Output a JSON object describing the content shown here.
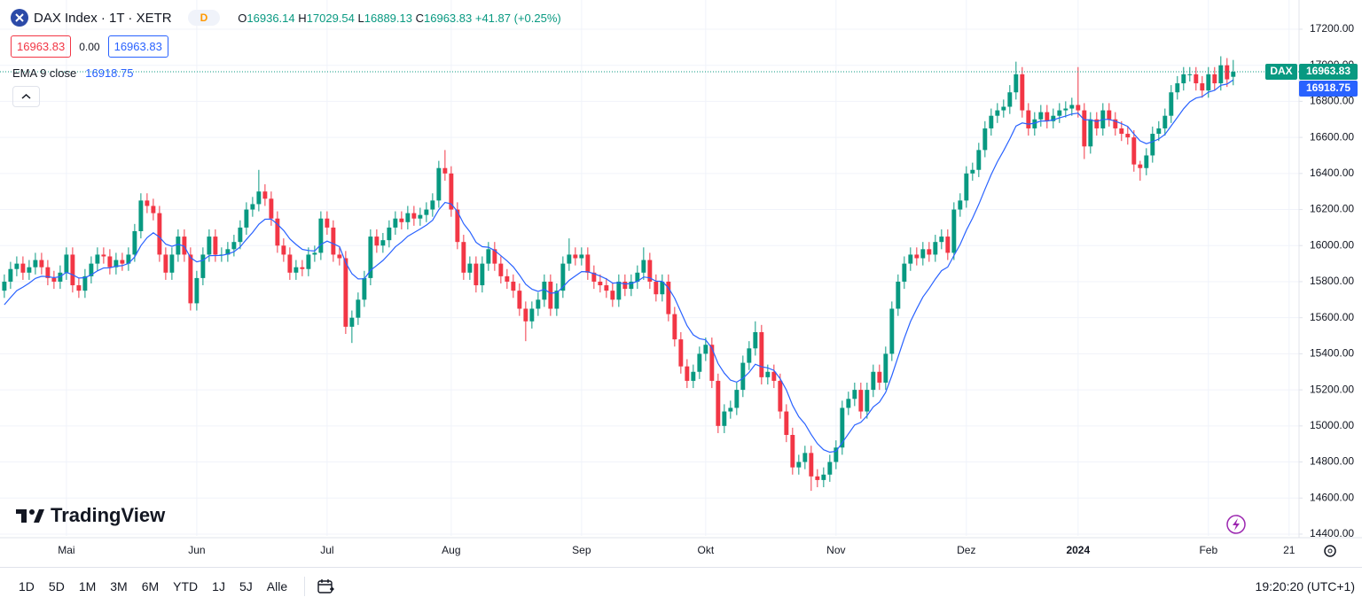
{
  "header": {
    "symbol": "DAX Index · 1T · XETR",
    "badge": "D",
    "o": "O",
    "h": "H",
    "l": "L",
    "c": "C",
    "change": "+41.87",
    "change_pct": "(+0.25%)",
    "spread": "0.00"
  },
  "price_label": "DAX",
  "logo": "TradingView",
  "toolbar": {
    "ranges": [
      "1D",
      "5D",
      "1M",
      "3M",
      "6M",
      "YTD",
      "1J",
      "5J",
      "Alle"
    ],
    "time": "19:20:20 (UTC+1)"
  },
  "chart_data": {
    "type": "candlestick",
    "up_color": "#089981",
    "down_color": "#f23645",
    "grid": true,
    "xlim": [
      -0.7,
      208.6
    ],
    "xticks": [
      {
        "value": 10,
        "label": "Mai"
      },
      {
        "value": 31,
        "label": "Jun"
      },
      {
        "value": 52,
        "label": "Jul"
      },
      {
        "value": 72,
        "label": "Aug"
      },
      {
        "value": 93,
        "label": "Sep"
      },
      {
        "value": 113,
        "label": "Okt"
      },
      {
        "value": 134,
        "label": "Nov"
      },
      {
        "value": 155,
        "label": "Dez"
      },
      {
        "value": 173,
        "label": "2024"
      },
      {
        "value": 194,
        "label": "Feb"
      },
      {
        "value": 207,
        "label": "21"
      }
    ],
    "ylim": [
      14390,
      17362
    ],
    "yticks": [
      {
        "value": 14400,
        "label": "14400.00"
      },
      {
        "value": 14600,
        "label": "14600.00"
      },
      {
        "value": 14800,
        "label": "14800.00"
      },
      {
        "value": 15000,
        "label": "15000.00"
      },
      {
        "value": 15200,
        "label": "15200.00"
      },
      {
        "value": 15400,
        "label": "15400.00"
      },
      {
        "value": 15600,
        "label": "15600.00"
      },
      {
        "value": 15800,
        "label": "15800.00"
      },
      {
        "value": 16000,
        "label": "16000.00"
      },
      {
        "value": 16200,
        "label": "16200.00"
      },
      {
        "value": 16400,
        "label": "16400.00"
      },
      {
        "value": 16600,
        "label": "16600.00"
      },
      {
        "value": 16800,
        "label": "16800.00"
      },
      {
        "value": 17000,
        "label": "17000.00"
      },
      {
        "value": 17200,
        "label": "17200.00"
      }
    ],
    "open": [
      15750,
      15800,
      15870,
      15900,
      15850,
      15880,
      15920,
      15880,
      15820,
      15800,
      15850,
      15950,
      15780,
      15750,
      15830,
      15900,
      15950,
      15940,
      15880,
      15920,
      15900,
      15950,
      16080,
      16250,
      16220,
      16180,
      15950,
      15850,
      15950,
      16050,
      15950,
      15680,
      15820,
      15950,
      16050,
      15950,
      15950,
      15980,
      16020,
      16100,
      16200,
      16230,
      16300,
      16260,
      16150,
      16000,
      15950,
      15850,
      15880,
      15870,
      15950,
      15960,
      16150,
      16100,
      15950,
      15930,
      15550,
      15600,
      15700,
      15820,
      16050,
      16000,
      16030,
      16100,
      16150,
      16130,
      16180,
      16150,
      16170,
      16200,
      16250,
      16430,
      16400,
      16200,
      16020,
      15850,
      15900,
      15780,
      15900,
      15980,
      15900,
      15830,
      15800,
      15750,
      15650,
      15580,
      15650,
      15700,
      15800,
      15650,
      15750,
      15900,
      15950,
      15930,
      15950,
      15850,
      15800,
      15780,
      15750,
      15700,
      15800,
      15760,
      15800,
      15850,
      15920,
      15800,
      15730,
      15800,
      15620,
      15480,
      15330,
      15250,
      15300,
      15400,
      15450,
      15250,
      15000,
      15080,
      15100,
      15200,
      15350,
      15430,
      15520,
      15270,
      15300,
      15250,
      15080,
      14950,
      14770,
      14800,
      14850,
      14720,
      14700,
      14730,
      14800,
      14880,
      15100,
      15150,
      15200,
      15080,
      15200,
      15300,
      15240,
      15400,
      15650,
      15800,
      15900,
      15950,
      15930,
      15980,
      15950,
      16020,
      16050,
      15960,
      16200,
      16250,
      16400,
      16420,
      16530,
      16650,
      16720,
      16750,
      16770,
      16850,
      16950,
      16750,
      16650,
      16700,
      16740,
      16690,
      16720,
      16750,
      16760,
      16780,
      16750,
      16550,
      16700,
      16650,
      16750,
      16700,
      16650,
      16620,
      16600,
      16450,
      16430,
      16500,
      16620,
      16650,
      16720,
      16850,
      16900,
      16950,
      16950,
      16900,
      16860,
      16950,
      16900,
      17000,
      16936.14
    ],
    "high": [
      15840,
      15910,
      15940,
      15940,
      15920,
      15960,
      15960,
      15920,
      15860,
      15890,
      15990,
      15990,
      15820,
      15870,
      15940,
      15990,
      15990,
      15980,
      15960,
      15960,
      15990,
      16120,
      16290,
      16290,
      16260,
      16220,
      15990,
      15990,
      16090,
      16090,
      15990,
      15860,
      15990,
      16090,
      16090,
      15990,
      16020,
      16060,
      16140,
      16240,
      16270,
      16420,
      16340,
      16300,
      16190,
      16040,
      15990,
      15920,
      15920,
      15990,
      16000,
      16190,
      16190,
      16140,
      15990,
      15970,
      15640,
      15740,
      15860,
      16090,
      16090,
      16070,
      16140,
      16190,
      16190,
      16220,
      16220,
      16210,
      16240,
      16290,
      16470,
      16530,
      16440,
      16240,
      16060,
      15940,
      15940,
      15940,
      16020,
      16020,
      15940,
      15870,
      15840,
      15790,
      15690,
      15690,
      15740,
      15840,
      15840,
      15790,
      15940,
      16040,
      15990,
      15990,
      15990,
      15890,
      15840,
      15820,
      15790,
      15840,
      15840,
      15840,
      15890,
      15990,
      15960,
      15840,
      15840,
      15840,
      15660,
      15520,
      15370,
      15340,
      15440,
      15490,
      15490,
      15290,
      15120,
      15140,
      15240,
      15390,
      15470,
      15580,
      15560,
      15340,
      15340,
      15290,
      15120,
      14990,
      14840,
      14890,
      14890,
      14760,
      14770,
      14840,
      14920,
      15140,
      15190,
      15240,
      15240,
      15240,
      15340,
      15340,
      15440,
      15690,
      15840,
      15940,
      15990,
      15990,
      16020,
      16020,
      16060,
      16090,
      16090,
      16240,
      16290,
      16440,
      16460,
      16570,
      16690,
      16760,
      16790,
      16810,
      16890,
      17020,
      16990,
      16790,
      16740,
      16780,
      16780,
      16760,
      16790,
      16800,
      16820,
      16990,
      16790,
      16740,
      16740,
      16790,
      16790,
      16740,
      16690,
      16660,
      16640,
      16470,
      16540,
      16660,
      16690,
      16760,
      16890,
      16940,
      16990,
      16990,
      16990,
      16940,
      16990,
      16990,
      17050,
      17040,
      17029.54
    ],
    "low": [
      15710,
      15760,
      15830,
      15810,
      15810,
      15840,
      15840,
      15780,
      15760,
      15760,
      15810,
      15740,
      15710,
      15710,
      15790,
      15860,
      15900,
      15840,
      15840,
      15860,
      15860,
      15910,
      16040,
      16180,
      16140,
      15910,
      15810,
      15810,
      15910,
      15910,
      15640,
      15640,
      15780,
      15910,
      15910,
      15910,
      15910,
      15940,
      15980,
      16060,
      16160,
      16190,
      16220,
      16110,
      15960,
      15910,
      15810,
      15810,
      15830,
      15830,
      15910,
      15920,
      16060,
      15910,
      15890,
      15510,
      15460,
      15560,
      15660,
      15780,
      15960,
      15960,
      15990,
      16060,
      16090,
      16090,
      16110,
      16110,
      16130,
      16160,
      16210,
      16360,
      16160,
      15980,
      15810,
      15810,
      15740,
      15740,
      15860,
      15860,
      15790,
      15760,
      15710,
      15610,
      15470,
      15540,
      15610,
      15660,
      15610,
      15610,
      15710,
      15860,
      15890,
      15890,
      15810,
      15760,
      15740,
      15710,
      15660,
      15660,
      15720,
      15720,
      15760,
      15810,
      15760,
      15690,
      15690,
      15580,
      15440,
      15290,
      15210,
      15210,
      15260,
      15360,
      15210,
      14960,
      14960,
      15040,
      15060,
      15160,
      15310,
      15390,
      15230,
      15230,
      15210,
      15040,
      14910,
      14730,
      14730,
      14760,
      14640,
      14660,
      14660,
      14690,
      14760,
      14840,
      15060,
      15110,
      15040,
      15040,
      15160,
      15200,
      15200,
      15360,
      15610,
      15760,
      15860,
      15890,
      15890,
      15910,
      15910,
      15980,
      15920,
      15920,
      16160,
      16210,
      16360,
      16380,
      16490,
      16610,
      16680,
      16710,
      16730,
      16810,
      16710,
      16610,
      16610,
      16660,
      16650,
      16650,
      16680,
      16710,
      16720,
      16710,
      16480,
      16510,
      16610,
      16610,
      16660,
      16610,
      16580,
      16560,
      16410,
      16360,
      16390,
      16460,
      16580,
      16610,
      16680,
      16810,
      16860,
      16910,
      16860,
      16820,
      16820,
      16860,
      16860,
      16880,
      16889.13
    ],
    "close": [
      15800,
      15870,
      15900,
      15850,
      15880,
      15920,
      15880,
      15820,
      15800,
      15850,
      15950,
      15780,
      15750,
      15830,
      15900,
      15950,
      15940,
      15880,
      15920,
      15900,
      15950,
      16080,
      16250,
      16220,
      16180,
      15950,
      15850,
      15950,
      16050,
      15950,
      15680,
      15820,
      15950,
      16050,
      15950,
      15950,
      15980,
      16020,
      16100,
      16200,
      16230,
      16300,
      16260,
      16150,
      16000,
      15950,
      15850,
      15880,
      15870,
      15950,
      15960,
      16150,
      16100,
      15950,
      15930,
      15550,
      15600,
      15700,
      15820,
      16050,
      16000,
      16030,
      16100,
      16150,
      16130,
      16180,
      16150,
      16170,
      16200,
      16250,
      16430,
      16400,
      16200,
      16020,
      15850,
      15900,
      15780,
      15900,
      15980,
      15900,
      15830,
      15800,
      15750,
      15650,
      15580,
      15650,
      15700,
      15800,
      15650,
      15750,
      15900,
      15950,
      15930,
      15950,
      15850,
      15800,
      15780,
      15750,
      15700,
      15800,
      15760,
      15800,
      15850,
      15920,
      15800,
      15730,
      15800,
      15620,
      15480,
      15330,
      15250,
      15300,
      15400,
      15450,
      15250,
      15000,
      15080,
      15100,
      15200,
      15350,
      15430,
      15520,
      15270,
      15300,
      15250,
      15080,
      14950,
      14770,
      14800,
      14850,
      14720,
      14700,
      14730,
      14800,
      14880,
      15100,
      15150,
      15200,
      15080,
      15200,
      15300,
      15240,
      15400,
      15650,
      15800,
      15900,
      15950,
      15930,
      15980,
      15950,
      16020,
      16050,
      15960,
      16200,
      16250,
      16400,
      16420,
      16530,
      16650,
      16720,
      16750,
      16770,
      16850,
      16950,
      16750,
      16650,
      16700,
      16740,
      16690,
      16720,
      16750,
      16760,
      16780,
      16750,
      16550,
      16700,
      16650,
      16750,
      16700,
      16650,
      16620,
      16600,
      16450,
      16430,
      16500,
      16620,
      16650,
      16720,
      16850,
      16900,
      16950,
      16950,
      16900,
      16860,
      16950,
      16900,
      17000,
      16921.96,
      16963.83
    ],
    "series": [
      {
        "name": "EMA 9 close",
        "color": "#2962ff",
        "values": [
          15672,
          15712,
          15750,
          15770,
          15792,
          15818,
          15830,
          15828,
          15822,
          15828,
          15852,
          15838,
          15820,
          15822,
          15838,
          15860,
          15876,
          15877,
          15886,
          15889,
          15901,
          15937,
          16000,
          16044,
          16071,
          16047,
          16008,
          15996,
          16007,
          15996,
          15933,
          15910,
          15918,
          15944,
          15945,
          15946,
          15953,
          15966,
          15993,
          16034,
          16073,
          16118,
          16146,
          16147,
          16118,
          16084,
          16037,
          16006,
          15979,
          15973,
          15970,
          16006,
          16025,
          16010,
          15994,
          15905,
          15844,
          15815,
          15816,
          15863,
          15890,
          15918,
          15954,
          15993,
          16020,
          16052,
          16072,
          16092,
          16114,
          16141,
          16199,
          16239,
          16231,
          16189,
          16121,
          16077,
          16018,
          15994,
          15991,
          15973,
          15944,
          15915,
          15882,
          15836,
          15785,
          15758,
          15746,
          15757,
          15736,
          15739,
          15771,
          15807,
          15832,
          15856,
          15855,
          15844,
          15831,
          15815,
          15792,
          15794,
          15787,
          15790,
          15802,
          15826,
          15821,
          15803,
          15802,
          15766,
          15709,
          15633,
          15556,
          15505,
          15484,
          15477,
          15432,
          15346,
          15293,
          15254,
          15243,
          15264,
          15297,
          15342,
          15328,
          15322,
          15308,
          15262,
          15200,
          15114,
          15051,
          15011,
          14953,
          14902,
          14868,
          14854,
          14859,
          14907,
          14956,
          15005,
          15020,
          15056,
          15105,
          15132,
          15186,
          15279,
          15383,
          15486,
          15579,
          15649,
          15715,
          15762,
          15814,
          15861,
          15881,
          15945,
          16006,
          16085,
          16152,
          16228,
          16312,
          16394,
          16465,
          16526,
          16591,
          16663,
          16680,
          16674,
          16679,
          16691,
          16691,
          16697,
          16708,
          16718,
          16730,
          16734,
          16697,
          16698,
          16688,
          16700,
          16700,
          16690,
          16676,
          16661,
          16619,
          16581,
          16565,
          16576,
          16591,
          16617,
          16664,
          16711,
          16759,
          16797,
          16818,
          16826,
          16851,
          16861,
          16889,
          16896,
          16918.75
        ]
      }
    ]
  }
}
